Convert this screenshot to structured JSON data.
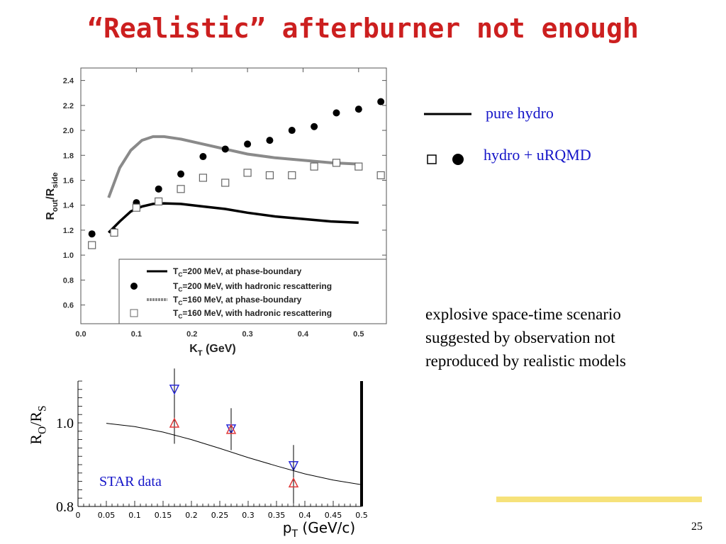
{
  "title": "“Realistic” afterburner not enough",
  "side_legend": {
    "line_label": "pure hydro",
    "markers_label": "hydro + uRQMD"
  },
  "note_lines": [
    "explosive space-time scenario",
    "suggested by observation not",
    "reproduced by realistic models"
  ],
  "slide_number": "25",
  "colors": {
    "title": "#cc1f1f",
    "blue_text": "#1414c8",
    "highlight": "#f6e27a",
    "gray_curve": "#8a8a8a",
    "star_blue": "#2b2bd6",
    "star_red": "#e03a3a"
  },
  "chart_data": [
    {
      "type": "line",
      "xlabel": "K_T (GeV)",
      "ylabel": "R_out/R_side",
      "xlim": [
        0,
        0.55
      ],
      "ylim": [
        0.45,
        2.5
      ],
      "x_ticks": [
        "0.0",
        "0.1",
        "0.2",
        "0.3",
        "0.4",
        "0.5"
      ],
      "y_ticks": [
        "0.6",
        "0.8",
        "1.0",
        "1.2",
        "1.4",
        "1.6",
        "1.8",
        "2.0",
        "2.2",
        "2.4"
      ],
      "legend_position": "bottom-right",
      "series": [
        {
          "name": "T_C=200 MeV, at phase-boundary",
          "style": "solid-black-line",
          "x": [
            0.05,
            0.07,
            0.09,
            0.11,
            0.13,
            0.15,
            0.18,
            0.22,
            0.26,
            0.3,
            0.35,
            0.4,
            0.45,
            0.5
          ],
          "y": [
            1.18,
            1.27,
            1.35,
            1.39,
            1.41,
            1.415,
            1.41,
            1.39,
            1.37,
            1.34,
            1.31,
            1.29,
            1.27,
            1.26
          ]
        },
        {
          "name": "T_C=200 MeV, with hadronic rescattering",
          "style": "filled-circle",
          "x": [
            0.02,
            0.06,
            0.1,
            0.14,
            0.18,
            0.22,
            0.26,
            0.3,
            0.34,
            0.38,
            0.42,
            0.46,
            0.5,
            0.54
          ],
          "y": [
            1.17,
            1.19,
            1.42,
            1.53,
            1.65,
            1.79,
            1.85,
            1.89,
            1.92,
            2.0,
            2.03,
            2.14,
            2.17,
            2.23
          ]
        },
        {
          "name": "T_C=160 MeV, at phase-boundary",
          "style": "gray-dashed-line",
          "x": [
            0.05,
            0.07,
            0.09,
            0.11,
            0.13,
            0.15,
            0.18,
            0.22,
            0.26,
            0.3,
            0.35,
            0.4,
            0.45,
            0.5
          ],
          "y": [
            1.46,
            1.7,
            1.84,
            1.92,
            1.95,
            1.95,
            1.93,
            1.89,
            1.85,
            1.81,
            1.78,
            1.76,
            1.74,
            1.73
          ]
        },
        {
          "name": "T_C=160 MeV, with hadronic rescattering",
          "style": "open-square",
          "x": [
            0.02,
            0.06,
            0.1,
            0.14,
            0.18,
            0.22,
            0.26,
            0.3,
            0.34,
            0.38,
            0.42,
            0.46,
            0.5,
            0.54
          ],
          "y": [
            1.08,
            1.18,
            1.38,
            1.43,
            1.53,
            1.62,
            1.58,
            1.66,
            1.64,
            1.64,
            1.71,
            1.74,
            1.71,
            1.64
          ]
        }
      ]
    },
    {
      "type": "scatter",
      "xlabel": "p_T (GeV/c)",
      "ylabel": "R_O/R_S",
      "xlim": [
        0,
        0.5
      ],
      "ylim": [
        0.8,
        1.1
      ],
      "x_ticks": [
        "0",
        "0.05",
        "0.1",
        "0.15",
        "0.2",
        "0.25",
        "0.3",
        "0.35",
        "0.4",
        "0.45",
        "0.5"
      ],
      "y_ticks": [
        "0.8",
        "1.0"
      ],
      "annotation": "STAR data",
      "curve": {
        "x": [
          0.05,
          0.1,
          0.15,
          0.2,
          0.25,
          0.3,
          0.35,
          0.4,
          0.45,
          0.5
        ],
        "y": [
          0.999,
          0.991,
          0.978,
          0.96,
          0.939,
          0.917,
          0.897,
          0.878,
          0.863,
          0.852
        ]
      },
      "points": [
        {
          "x": 0.17,
          "y": 1.08,
          "err": 0.05,
          "marker": "down-triangle-blue"
        },
        {
          "x": 0.17,
          "y": 1.0,
          "err": 0.05,
          "marker": "up-triangle-red"
        },
        {
          "x": 0.27,
          "y": 0.985,
          "err": 0.05,
          "marker": "down-triangle-blue"
        },
        {
          "x": 0.27,
          "y": 0.985,
          "err": 0.05,
          "marker": "up-triangle-red"
        },
        {
          "x": 0.38,
          "y": 0.897,
          "err": 0.05,
          "marker": "down-triangle-blue"
        },
        {
          "x": 0.38,
          "y": 0.857,
          "err": 0.05,
          "marker": "up-triangle-red"
        }
      ]
    }
  ]
}
